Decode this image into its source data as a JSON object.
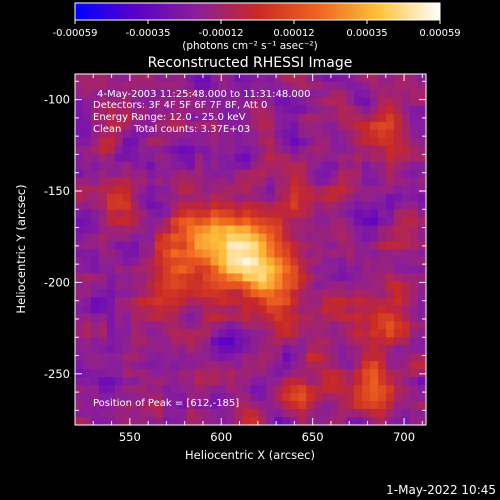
{
  "chart_data": {
    "type": "heatmap",
    "title": "Reconstructed RHESSI Image",
    "xlabel": "Heliocentric X (arcsec)",
    "ylabel": "Heliocentric Y (arcsec)",
    "xlim": [
      520,
      712
    ],
    "ylim": [
      -278,
      -86
    ],
    "x_ticks": [
      550,
      600,
      650,
      700
    ],
    "y_ticks": [
      -100,
      -150,
      -200,
      -250
    ],
    "colorbar": {
      "label": "(photons cm⁻² s⁻¹ asec⁻²)",
      "range": [
        -0.00059,
        0.00059
      ],
      "ticks": [
        "-0.00059",
        "-0.00035",
        "-0.00012",
        "0.00012",
        "0.00035",
        "0.00059"
      ],
      "colors": [
        "#0000ff",
        "#5a00c8",
        "#8a1f9a",
        "#c82828",
        "#f0641e",
        "#ffc23c",
        "#ffffff"
      ]
    },
    "annotations": [
      "4-May-2003 11:25:48.000 to 11:31:48.000",
      "Detectors: 3F 4F 5F 6F 7F 8F, Att 0",
      "Energy Range: 12.0 - 25.0 keV",
      "Clean    Total counts: 3.37E+03"
    ],
    "peak_label": "Position of Peak = [612,-185]",
    "peak_position": [
      612,
      -185
    ],
    "sources": [
      {
        "x": 612,
        "y": -185,
        "amp": 0.00059,
        "sx": 16,
        "sy": 14
      },
      {
        "x": 588,
        "y": -170,
        "amp": 0.00032,
        "sx": 12,
        "sy": 10
      },
      {
        "x": 576,
        "y": -195,
        "amp": 0.00024,
        "sx": 11,
        "sy": 12
      },
      {
        "x": 630,
        "y": -205,
        "amp": 0.00026,
        "sx": 12,
        "sy": 16
      },
      {
        "x": 545,
        "y": -160,
        "amp": 0.00018,
        "sx": 8,
        "sy": 10
      },
      {
        "x": 560,
        "y": -210,
        "amp": 0.00018,
        "sx": 10,
        "sy": 8
      },
      {
        "x": 640,
        "y": -160,
        "amp": 0.00017,
        "sx": 9,
        "sy": 8
      },
      {
        "x": 690,
        "y": -120,
        "amp": 0.0002,
        "sx": 10,
        "sy": 10
      },
      {
        "x": 690,
        "y": -215,
        "amp": 0.00022,
        "sx": 12,
        "sy": 12
      },
      {
        "x": 680,
        "y": -255,
        "amp": 0.00026,
        "sx": 14,
        "sy": 12
      },
      {
        "x": 640,
        "y": -262,
        "amp": 0.00018,
        "sx": 12,
        "sy": 8
      },
      {
        "x": 540,
        "y": -120,
        "amp": 0.00012,
        "sx": 8,
        "sy": 8
      },
      {
        "x": 700,
        "y": -170,
        "amp": 0.00012,
        "sx": 8,
        "sy": 8
      }
    ],
    "background_level": -0.00018
  },
  "footer": {
    "date": "1-May-2022 10:45"
  }
}
